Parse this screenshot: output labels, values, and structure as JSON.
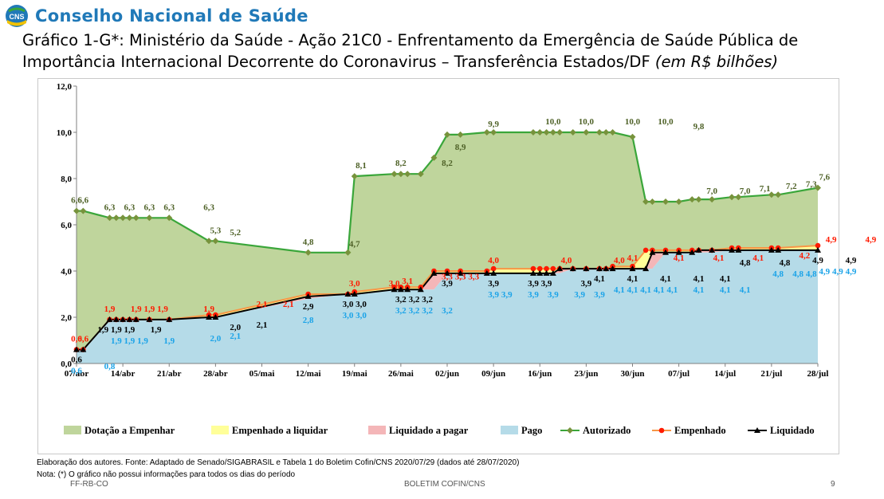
{
  "header": {
    "brand": "Conselho Nacional de Saúde",
    "logo_text": "CNS",
    "title_main": "Gráfico 1-G*: Ministério da Saúde - Ação 21C0 - Enfrentamento da Emergência de Saúde Pública de Importância Internacional Decorrente do Coronavirus – Transferência Estados/DF",
    "title_unit": "(em R$ bilhões)"
  },
  "footer": {
    "source": "Elaboração dos autores. Fonte: Adaptado de Senado/SIGABRASIL e Tabela 1 do Boletim Cofin/CNS 2020/07/29  (dados até 28/07/2020)",
    "note": "Nota: (*) O gráfico não possui informações para todos os dias do período",
    "left": "FF-RB-CO",
    "center": "BOLETIM COFIN/CNS",
    "page": "9"
  },
  "colors": {
    "dotacao": "#bfd59c",
    "empenhado_liquidar": "#ffff99",
    "liquidado_pagar": "#f4b6b8",
    "pago": "#b5dbe8",
    "autorizado": "#3aa63a",
    "autorizado_marker": "#77933c",
    "empenhado": "#ff1a00",
    "empenhado_line": "#f79646",
    "liquidado": "#000000",
    "pago_label": "#1aa3e8",
    "label_green": "#4f6228",
    "brand": "#2079b8"
  },
  "chart_data": {
    "type": "area",
    "x_ticks": [
      "07/abr",
      "14/abr",
      "21/abr",
      "28/abr",
      "05/mai",
      "12/mai",
      "19/mai",
      "26/mai",
      "02/jun",
      "09/jun",
      "16/jun",
      "23/jun",
      "30/jun",
      "07/jul",
      "14/jul",
      "21/jul",
      "28/jul"
    ],
    "ylim": [
      0,
      12
    ],
    "y_ticks": [
      "0,0",
      "2,0",
      "4,0",
      "6,0",
      "8,0",
      "10,0",
      "12,0"
    ],
    "days_from_07abr": [
      0,
      1,
      5,
      6,
      7,
      8,
      9,
      11,
      14,
      20,
      21,
      35,
      41,
      42,
      48,
      49,
      50,
      52,
      54,
      56,
      58,
      62,
      63,
      69,
      70,
      71,
      72,
      73,
      75,
      77,
      79,
      80,
      81,
      84,
      86,
      87,
      89,
      91,
      93,
      94,
      96,
      99,
      100,
      105,
      106,
      112
    ],
    "series": [
      {
        "name": "Autorizado",
        "values": [
          6.6,
          6.6,
          6.3,
          6.3,
          6.3,
          6.3,
          6.3,
          6.3,
          6.3,
          5.3,
          5.3,
          4.8,
          4.8,
          8.1,
          8.2,
          8.2,
          8.2,
          8.2,
          8.9,
          9.9,
          9.9,
          10.0,
          10.0,
          10.0,
          10.0,
          10.0,
          10.0,
          10.0,
          10.0,
          10.0,
          10.0,
          10.0,
          10.0,
          9.8,
          7.0,
          7.0,
          7.0,
          7.0,
          7.1,
          7.1,
          7.1,
          7.2,
          7.2,
          7.3,
          7.3,
          7.6
        ]
      },
      {
        "name": "Empenhado",
        "values": [
          0.6,
          0.6,
          1.9,
          1.9,
          1.9,
          1.9,
          1.9,
          1.9,
          1.9,
          2.1,
          2.1,
          3.0,
          3.0,
          3.1,
          3.3,
          3.3,
          3.3,
          3.3,
          4.0,
          4.0,
          4.0,
          4.0,
          4.1,
          4.1,
          4.1,
          4.1,
          4.1,
          4.1,
          4.1,
          4.1,
          4.1,
          4.1,
          4.2,
          4.2,
          4.9,
          4.9,
          4.9,
          4.9,
          4.9,
          4.9,
          4.9,
          5.0,
          5.0,
          5.0,
          5.0,
          5.1
        ]
      },
      {
        "name": "Liquidado",
        "values": [
          0.6,
          0.6,
          1.9,
          1.9,
          1.9,
          1.9,
          1.9,
          1.9,
          1.9,
          2.0,
          2.0,
          2.9,
          3.0,
          3.0,
          3.2,
          3.2,
          3.2,
          3.2,
          3.9,
          3.9,
          3.9,
          3.9,
          3.9,
          3.9,
          3.9,
          3.9,
          3.9,
          4.1,
          4.1,
          4.1,
          4.1,
          4.1,
          4.1,
          4.1,
          4.1,
          4.8,
          4.8,
          4.8,
          4.8,
          4.9,
          4.9,
          4.9,
          4.9,
          4.9,
          4.9,
          4.9
        ]
      },
      {
        "name": "Pago",
        "values": [
          0.6,
          0.6,
          1.9,
          1.9,
          1.9,
          1.9,
          1.9,
          1.9,
          1.9,
          2.0,
          2.0,
          2.8,
          3.0,
          3.0,
          3.2,
          3.2,
          3.2,
          3.2,
          3.2,
          3.9,
          3.9,
          3.9,
          3.9,
          3.9,
          3.9,
          3.9,
          3.9,
          3.9,
          4.1,
          4.1,
          4.1,
          4.1,
          4.1,
          4.1,
          4.1,
          4.1,
          4.8,
          4.8,
          4.8,
          4.8,
          4.8,
          4.9,
          4.9,
          4.9,
          4.9,
          4.9
        ]
      },
      {
        "name": "Dotação a Empenhar"
      },
      {
        "name": "Empenhado a liquidar"
      },
      {
        "name": "Liquidado a pagar"
      }
    ],
    "data_labels": {
      "autorizado": [
        [
          "6,6",
          0,
          6.6
        ],
        [
          "6,6",
          1,
          6.6
        ],
        [
          "6,3",
          5,
          6.3
        ],
        [
          "6,3",
          8,
          6.3
        ],
        [
          "6,3",
          11,
          6.3
        ],
        [
          "6,3",
          14,
          6.3
        ],
        [
          "6,3",
          20,
          6.3
        ],
        [
          "5,3",
          21,
          5.3
        ],
        [
          "5,2",
          24,
          5.2
        ],
        [
          "4,8",
          35,
          4.8
        ],
        [
          "4,7",
          42,
          4.7
        ],
        [
          "8,1",
          43,
          8.1
        ],
        [
          "8,2",
          49,
          8.2
        ],
        [
          "8,2",
          56,
          8.2
        ],
        [
          "8,9",
          58,
          8.9
        ],
        [
          "9,9",
          63,
          9.9
        ],
        [
          "10,0",
          72,
          10.0
        ],
        [
          "10,0",
          77,
          10.0
        ],
        [
          "10,0",
          84,
          10.0
        ],
        [
          "10,0",
          89,
          10.0
        ],
        [
          "9,8",
          94,
          9.8
        ],
        [
          "7,0",
          96,
          7.0
        ],
        [
          "7,0",
          101,
          7.0
        ],
        [
          "7,1",
          104,
          7.1
        ],
        [
          "7,2",
          108,
          7.2
        ],
        [
          "7,3",
          111,
          7.3
        ],
        [
          "7,6",
          113,
          7.6
        ]
      ],
      "empenhado": [
        [
          "0,6",
          0,
          0.6
        ],
        [
          "0,6",
          1,
          0.6
        ],
        [
          "1,9",
          5,
          1.9
        ],
        [
          "1,9",
          9,
          1.9
        ],
        [
          "1,9",
          11,
          1.9
        ],
        [
          "1,9",
          13,
          1.9
        ],
        [
          "1,9",
          20,
          1.9
        ],
        [
          "2,1",
          28,
          2.1
        ],
        [
          "2,1",
          32,
          2.1
        ],
        [
          "3,0",
          42,
          3.0
        ],
        [
          "3,0",
          48,
          3.0
        ],
        [
          "3,1",
          50,
          3.1
        ],
        [
          "3,3",
          56,
          3.3
        ],
        [
          "3,3",
          58,
          3.3
        ],
        [
          "3,3",
          60,
          3.3
        ],
        [
          "4,0",
          63,
          4.0
        ],
        [
          "4,0",
          74,
          4.0
        ],
        [
          "4,0",
          82,
          4.0
        ],
        [
          "4,1",
          84,
          4.1
        ],
        [
          "4,1",
          91,
          4.1
        ],
        [
          "4,1",
          97,
          4.1
        ],
        [
          "4,1",
          103,
          4.1
        ],
        [
          "4,2",
          110,
          4.2
        ],
        [
          "4,9",
          114,
          4.9
        ],
        [
          "4,9",
          120,
          4.9
        ],
        [
          "4,9",
          124,
          4.9
        ],
        [
          "5,0",
          129,
          5.0
        ],
        [
          "5,1",
          133,
          5.1
        ]
      ],
      "liquidado": [
        [
          "0,6",
          0,
          0.6
        ],
        [
          "1,9",
          4,
          1.9
        ],
        [
          "1,9",
          6,
          1.9
        ],
        [
          "1,9",
          8,
          1.9
        ],
        [
          "1,9",
          12,
          1.9
        ],
        [
          "2,0",
          24,
          2.0
        ],
        [
          "2,1",
          28,
          2.1
        ],
        [
          "2,9",
          35,
          2.9
        ],
        [
          "3,0",
          41,
          3.0
        ],
        [
          "3,0",
          43,
          3.0
        ],
        [
          "3,2",
          49,
          3.2
        ],
        [
          "3,2",
          51,
          3.2
        ],
        [
          "3,2",
          53,
          3.2
        ],
        [
          "3,9",
          56,
          3.9
        ],
        [
          "3,9",
          63,
          3.9
        ],
        [
          "3,9",
          69,
          3.9
        ],
        [
          "3,9",
          71,
          3.9
        ],
        [
          "3,9",
          77,
          3.9
        ],
        [
          "4,1",
          79,
          4.1
        ],
        [
          "4,1",
          84,
          4.1
        ],
        [
          "4,1",
          89,
          4.1
        ],
        [
          "4,1",
          94,
          4.1
        ],
        [
          "4,1",
          98,
          4.1
        ],
        [
          "4,8",
          101,
          4.8
        ],
        [
          "4,8",
          107,
          4.8
        ],
        [
          "4,9",
          112,
          4.9
        ],
        [
          "4,9",
          117,
          4.9
        ]
      ],
      "pago": [
        [
          "0,6",
          0,
          0.6
        ],
        [
          "0,8",
          5,
          0.8
        ],
        [
          "1,9",
          6,
          1.9
        ],
        [
          "1,9",
          8,
          1.9
        ],
        [
          "1,9",
          10,
          1.9
        ],
        [
          "1,9",
          14,
          1.9
        ],
        [
          "2,0",
          21,
          2.0
        ],
        [
          "2,1",
          24,
          2.1
        ],
        [
          "2,8",
          35,
          2.8
        ],
        [
          "3,0",
          41,
          3.0
        ],
        [
          "3,0",
          43,
          3.0
        ],
        [
          "3,2",
          49,
          3.2
        ],
        [
          "3,2",
          51,
          3.2
        ],
        [
          "3,2",
          53,
          3.2
        ],
        [
          "3,2",
          56,
          3.2
        ],
        [
          "3,9",
          63,
          3.9
        ],
        [
          "3,9",
          65,
          3.9
        ],
        [
          "3,9",
          69,
          3.9
        ],
        [
          "3,9",
          72,
          3.9
        ],
        [
          "3,9",
          76,
          3.9
        ],
        [
          "3,9",
          79,
          3.9
        ],
        [
          "4,1",
          82,
          4.1
        ],
        [
          "4,1",
          84,
          4.1
        ],
        [
          "4,1",
          86,
          4.1
        ],
        [
          "4,1",
          88,
          4.1
        ],
        [
          "4,1",
          90,
          4.1
        ],
        [
          "4,1",
          94,
          4.1
        ],
        [
          "4,1",
          98,
          4.1
        ],
        [
          "4,1",
          101,
          4.1
        ],
        [
          "4,8",
          106,
          4.8
        ],
        [
          "4,8",
          109,
          4.8
        ],
        [
          "4,8",
          111,
          4.8
        ],
        [
          "4,9",
          113,
          4.9
        ],
        [
          "4,9",
          115,
          4.9
        ],
        [
          "4,9",
          117,
          4.9
        ],
        [
          "4,9",
          125,
          4.9
        ],
        [
          "4,9",
          127,
          4.9
        ]
      ]
    },
    "legend": [
      "Dotação a Empenhar",
      "Empenhado a liquidar",
      "Liquidado a pagar",
      "Pago",
      "Autorizado",
      "Empenhado",
      "Liquidado"
    ],
    "legend_position": "bottom",
    "grid": false
  }
}
